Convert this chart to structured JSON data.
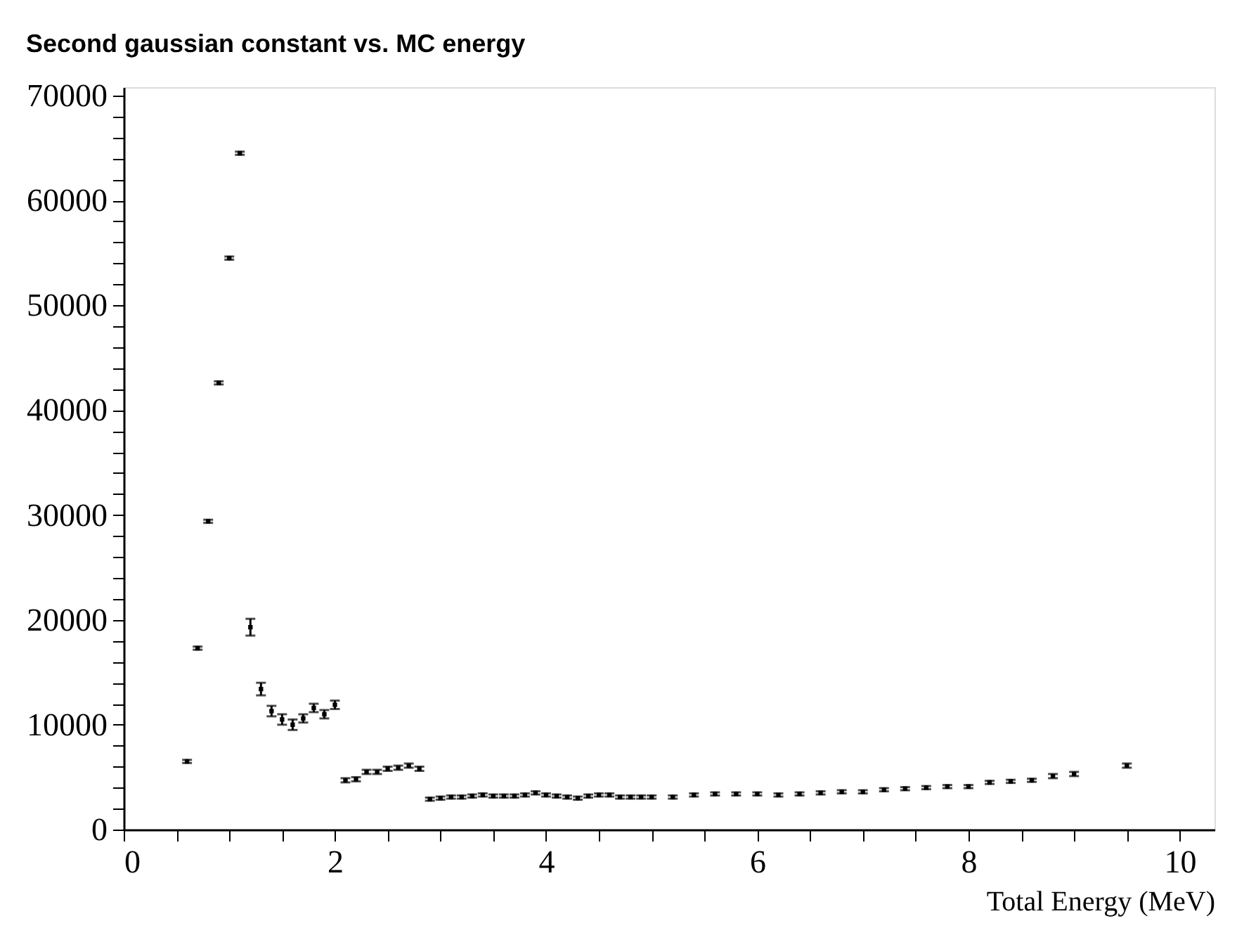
{
  "chart_data": {
    "type": "scatter",
    "title": "Second gaussian constant vs. MC energy",
    "xlabel": "Total Energy (MeV)",
    "x": [
      0.6,
      0.7,
      0.8,
      0.9,
      1.0,
      1.1,
      1.2,
      1.3,
      1.4,
      1.5,
      1.6,
      1.7,
      1.8,
      1.9,
      2.0,
      2.1,
      2.2,
      2.3,
      2.4,
      2.5,
      2.6,
      2.7,
      2.8,
      2.9,
      3.0,
      3.1,
      3.2,
      3.3,
      3.4,
      3.5,
      3.6,
      3.7,
      3.8,
      3.9,
      4.0,
      4.1,
      4.2,
      4.3,
      4.4,
      4.5,
      4.6,
      4.7,
      4.8,
      4.9,
      5.0,
      5.2,
      5.4,
      5.6,
      5.8,
      6.0,
      6.2,
      6.4,
      6.6,
      6.8,
      7.0,
      7.2,
      7.4,
      7.6,
      7.8,
      8.0,
      8.2,
      8.4,
      8.6,
      8.8,
      9.0,
      9.5
    ],
    "values": [
      6500,
      17300,
      29400,
      42600,
      54500,
      64500,
      19300,
      13400,
      11300,
      10500,
      10000,
      10600,
      11600,
      11000,
      11900,
      4700,
      4800,
      5500,
      5500,
      5800,
      5900,
      6100,
      5800,
      2900,
      3000,
      3100,
      3100,
      3200,
      3300,
      3200,
      3200,
      3200,
      3300,
      3500,
      3300,
      3200,
      3100,
      3000,
      3200,
      3300,
      3300,
      3100,
      3100,
      3100,
      3100,
      3100,
      3300,
      3400,
      3400,
      3400,
      3300,
      3400,
      3500,
      3600,
      3600,
      3800,
      3900,
      4000,
      4100,
      4100,
      4500,
      4600,
      4700,
      5100,
      5300,
      6100
    ],
    "errors": [
      150,
      150,
      150,
      150,
      150,
      150,
      800,
      600,
      500,
      500,
      500,
      400,
      400,
      400,
      400,
      200,
      200,
      200,
      200,
      200,
      200,
      200,
      200,
      150,
      150,
      150,
      150,
      150,
      150,
      150,
      150,
      150,
      150,
      150,
      150,
      150,
      150,
      150,
      150,
      150,
      150,
      150,
      150,
      150,
      150,
      150,
      150,
      150,
      150,
      150,
      150,
      150,
      150,
      150,
      150,
      150,
      150,
      150,
      150,
      150,
      150,
      150,
      150,
      200,
      200,
      200
    ],
    "color": "#000000",
    "marker": "square",
    "grid": false,
    "xlim": [
      0,
      10.33
    ],
    "ylim": [
      0,
      70800
    ],
    "xticks": [
      0,
      {
        "value": 0.5,
        "label": null
      },
      {
        "value": 1,
        "label": null
      },
      {
        "value": 1.5,
        "label": null
      },
      2,
      {
        "value": 2.5,
        "label": null
      },
      {
        "value": 3,
        "label": null
      },
      {
        "value": 3.5,
        "label": null
      },
      4,
      {
        "value": 4.5,
        "label": null
      },
      {
        "value": 5,
        "label": null
      },
      {
        "value": 5.5,
        "label": null
      },
      6,
      {
        "value": 6.5,
        "label": null
      },
      {
        "value": 7,
        "label": null
      },
      {
        "value": 7.5,
        "label": null
      },
      8,
      {
        "value": 8.5,
        "label": null
      },
      {
        "value": 9,
        "label": null
      },
      {
        "value": 9.5,
        "label": null
      },
      10
    ],
    "yticks": [
      0,
      {
        "value": 2000,
        "label": null
      },
      {
        "value": 4000,
        "label": null
      },
      {
        "value": 6000,
        "label": null
      },
      {
        "value": 8000,
        "label": null
      },
      10000,
      {
        "value": 12000,
        "label": null
      },
      {
        "value": 14000,
        "label": null
      },
      {
        "value": 16000,
        "label": null
      },
      {
        "value": 18000,
        "label": null
      },
      20000,
      {
        "value": 22000,
        "label": null
      },
      {
        "value": 24000,
        "label": null
      },
      {
        "value": 26000,
        "label": null
      },
      {
        "value": 28000,
        "label": null
      },
      30000,
      {
        "value": 32000,
        "label": null
      },
      {
        "value": 34000,
        "label": null
      },
      {
        "value": 36000,
        "label": null
      },
      {
        "value": 38000,
        "label": null
      },
      40000,
      {
        "value": 42000,
        "label": null
      },
      {
        "value": 44000,
        "label": null
      },
      {
        "value": 46000,
        "label": null
      },
      {
        "value": 48000,
        "label": null
      },
      50000,
      {
        "value": 52000,
        "label": null
      },
      {
        "value": 54000,
        "label": null
      },
      {
        "value": 56000,
        "label": null
      },
      {
        "value": 58000,
        "label": null
      },
      60000,
      {
        "value": 62000,
        "label": null
      },
      {
        "value": 64000,
        "label": null
      },
      {
        "value": 66000,
        "label": null
      },
      {
        "value": 68000,
        "label": null
      },
      70000
    ]
  }
}
